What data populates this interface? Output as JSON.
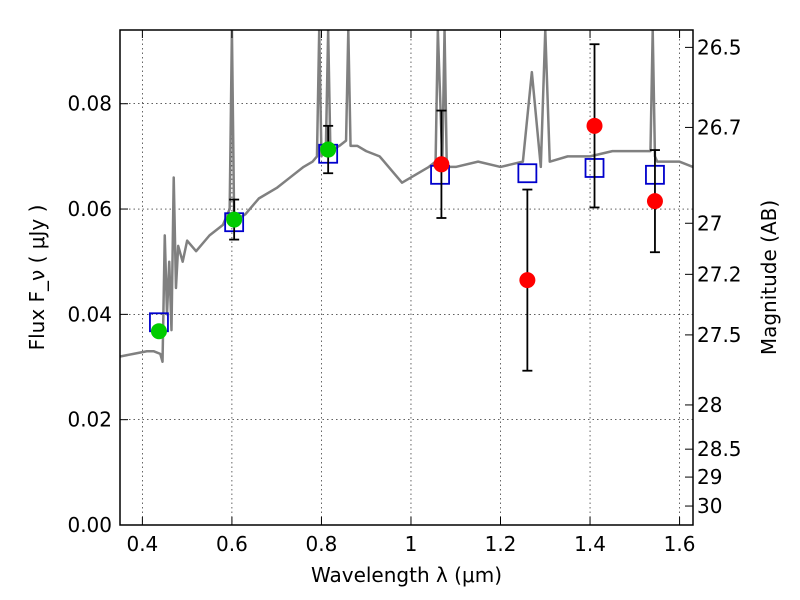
{
  "chart_data": {
    "type": "scatter",
    "xlabel": "Wavelength  λ (μm)",
    "ylabel": "Flux  F_ν  ( μJy )",
    "ylabel_right": "Magnitude (AB)",
    "xlim": [
      0.35,
      1.63
    ],
    "ylim": [
      0.0,
      0.094
    ],
    "grid": true,
    "x_ticks": [
      0.4,
      0.6,
      0.8,
      1.0,
      1.2,
      1.4,
      1.6
    ],
    "x_tick_labels": [
      "0.4",
      "0.6",
      "0.8",
      "1",
      "1.2",
      "1.4",
      "1.6"
    ],
    "y_ticks": [
      0.0,
      0.02,
      0.04,
      0.06,
      0.08
    ],
    "y_tick_labels": [
      "0.00",
      "0.02",
      "0.04",
      "0.06",
      "0.08"
    ],
    "right_ticks": [
      {
        "label": "26.5",
        "flux": 0.0907
      },
      {
        "label": "26.7",
        "flux": 0.0755
      },
      {
        "label": "27",
        "flux": 0.0573
      },
      {
        "label": "27.2",
        "flux": 0.0476
      },
      {
        "label": "27.5",
        "flux": 0.0361
      },
      {
        "label": "28",
        "flux": 0.0228
      },
      {
        "label": "28.5",
        "flux": 0.0144
      },
      {
        "label": "29",
        "flux": 0.0091
      },
      {
        "label": "30",
        "flux": 0.0036
      }
    ],
    "series": [
      {
        "kind": "line",
        "color": "#808080",
        "x": [
          0.35,
          0.38,
          0.41,
          0.425,
          0.44,
          0.445,
          0.45,
          0.455,
          0.46,
          0.465,
          0.47,
          0.475,
          0.48,
          0.49,
          0.5,
          0.52,
          0.55,
          0.58,
          0.595,
          0.6,
          0.605,
          0.61,
          0.63,
          0.66,
          0.7,
          0.73,
          0.76,
          0.78,
          0.79,
          0.795,
          0.8,
          0.81,
          0.815,
          0.82,
          0.84,
          0.855,
          0.86,
          0.865,
          0.88,
          0.9,
          0.93,
          0.96,
          0.98,
          1.0,
          1.02,
          1.04,
          1.055,
          1.06,
          1.07,
          1.075,
          1.08,
          1.1,
          1.15,
          1.2,
          1.25,
          1.27,
          1.29,
          1.3,
          1.31,
          1.35,
          1.4,
          1.45,
          1.5,
          1.535,
          1.54,
          1.545,
          1.55,
          1.6,
          1.63
        ],
        "y": [
          0.032,
          0.0325,
          0.033,
          0.033,
          0.0325,
          0.031,
          0.055,
          0.04,
          0.05,
          0.037,
          0.066,
          0.045,
          0.053,
          0.05,
          0.054,
          0.052,
          0.055,
          0.057,
          0.06,
          0.094,
          0.058,
          0.058,
          0.059,
          0.062,
          0.064,
          0.066,
          0.068,
          0.069,
          0.07,
          0.094,
          0.07,
          0.072,
          0.094,
          0.071,
          0.072,
          0.073,
          0.094,
          0.072,
          0.072,
          0.071,
          0.07,
          0.067,
          0.065,
          0.066,
          0.067,
          0.068,
          0.069,
          0.094,
          0.069,
          0.094,
          0.068,
          0.068,
          0.069,
          0.068,
          0.069,
          0.086,
          0.068,
          0.094,
          0.069,
          0.07,
          0.07,
          0.071,
          0.071,
          0.071,
          0.094,
          0.07,
          0.069,
          0.069,
          0.068
        ]
      },
      {
        "kind": "square",
        "color": "#0000cc",
        "x": [
          0.437,
          0.605,
          0.815,
          1.065,
          1.26,
          1.41,
          1.545
        ],
        "y": [
          0.0385,
          0.0575,
          0.0705,
          0.0665,
          0.0668,
          0.0678,
          0.0665
        ]
      },
      {
        "kind": "circle",
        "color": "#00cc00",
        "x": [
          0.437,
          0.605,
          0.815
        ],
        "y": [
          0.0368,
          0.058,
          0.0713
        ],
        "err": [
          0.0,
          0.0038,
          0.0045
        ]
      },
      {
        "kind": "circle",
        "color": "#ff0000",
        "x": [
          1.068,
          1.26,
          1.41,
          1.545
        ],
        "y": [
          0.0685,
          0.0465,
          0.0758,
          0.0615
        ],
        "err": [
          0.0102,
          0.0172,
          0.0155,
          0.0097
        ]
      }
    ]
  }
}
